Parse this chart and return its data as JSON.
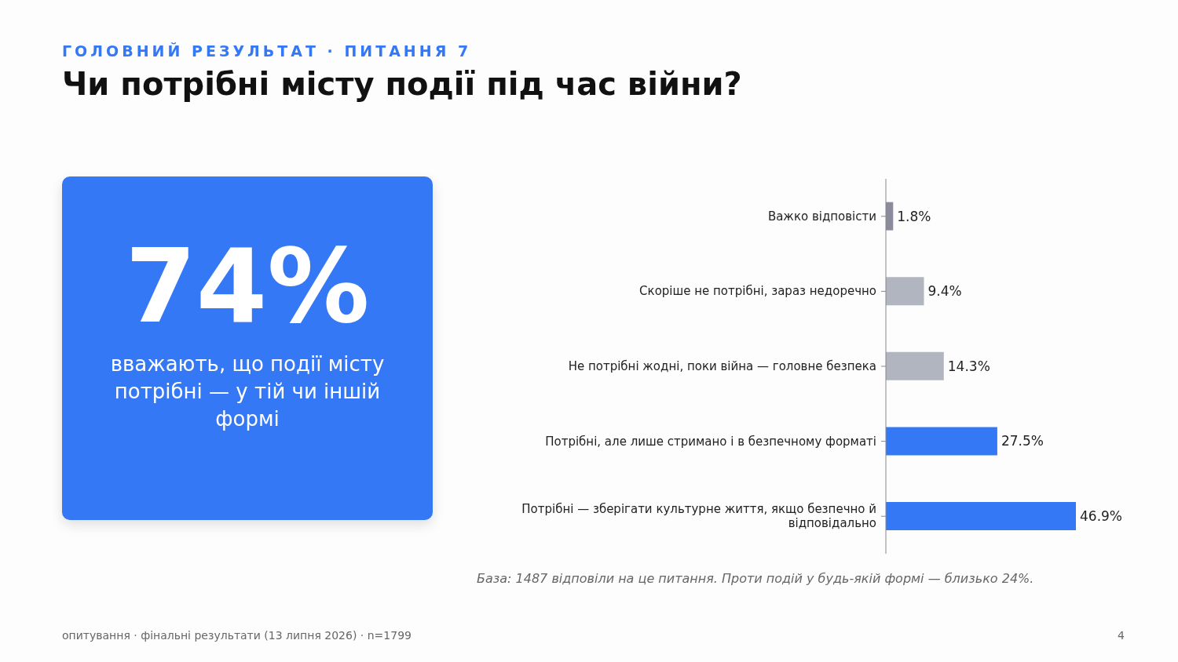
{
  "chart_data": [
    {
      "type": "other",
      "title": "74%",
      "subtitle": "вважають, що події місту потрібні — у тій чи іншій формі",
      "color": "#3578f6"
    },
    {
      "type": "bar",
      "orientation": "horizontal",
      "title": "Чи потрібні місту події під час війни?",
      "subtitle": "ГОЛОВНИЙ РЕЗУЛЬТАТ · ПИТАННЯ 7",
      "categories": [
        "Важко відповісти",
        "Скоріше не потрібні, зараз недоречно",
        "Не потрібні жодні, поки війна — головне безпека",
        "Потрібні, але лише стримано і в безпечному форматі",
        "Потрібні — зберігати культурне життя, якщо безпечно й відповідально"
      ],
      "values": [
        1.8,
        9.4,
        14.3,
        27.5,
        46.9
      ],
      "colors": [
        "#8b8b9b",
        "#b0b5bf",
        "#b0b5bf",
        "#3578f6",
        "#3578f6"
      ],
      "value_labels": [
        "1.8%",
        "9.4%",
        "14.3%",
        "27.5%",
        "46.9%"
      ],
      "tick_labels": "y",
      "annotations": [
        "База: 1487 відповіли на це питання. Проти подій у будь-якій формі — близько 24%.",
        "опитування · фінальні результати (13 липня 2026) · n=1799",
        "4"
      ]
    }
  ]
}
